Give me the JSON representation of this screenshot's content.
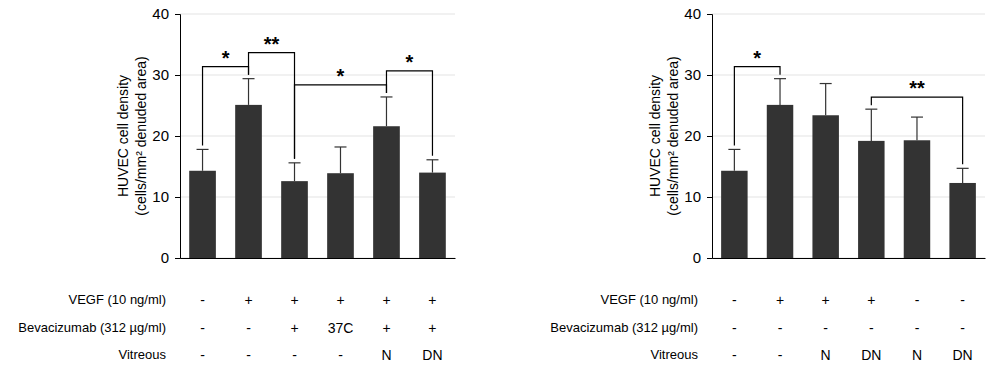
{
  "chart_data": [
    {
      "type": "bar",
      "categories": [
        null,
        null,
        null,
        null,
        null,
        null
      ],
      "values": [
        14.3,
        25.1,
        12.6,
        13.9,
        21.6,
        14.0
      ],
      "errors": [
        3.5,
        4.3,
        3.0,
        4.3,
        4.8,
        2.1
      ],
      "color": "#333333",
      "ylim": [
        0,
        40
      ],
      "yticks": [
        0,
        10,
        20,
        30,
        40
      ],
      "grid": true,
      "y_label": [
        "HUVEC cell density",
        "(cells/mm² denuded area)"
      ],
      "conditions": [
        {
          "label": "VEGF (10 ng/ml)",
          "cells": [
            "-",
            "+",
            "+",
            "+",
            "+",
            "+"
          ]
        },
        {
          "label": "Bevacizumab (312 µg/ml)",
          "cells": [
            "-",
            "-",
            "+",
            "37C",
            "+",
            "+"
          ]
        },
        {
          "label": "Vitreous",
          "cells": [
            "-",
            "-",
            "-",
            "-",
            "N",
            "DN"
          ]
        }
      ],
      "significance": [
        {
          "from": 0,
          "to": 1,
          "text": "*"
        },
        {
          "from": 1,
          "to": 2,
          "text": "**"
        },
        {
          "from": 2,
          "to": 4,
          "text": "*"
        },
        {
          "from": 4,
          "to": 5,
          "text": "*"
        }
      ]
    },
    {
      "type": "bar",
      "categories": [
        null,
        null,
        null,
        null,
        null,
        null
      ],
      "values": [
        14.3,
        25.1,
        23.4,
        19.2,
        19.3,
        12.3
      ],
      "errors": [
        3.5,
        4.3,
        5.2,
        5.2,
        3.8,
        2.4
      ],
      "color": "#333333",
      "ylim": [
        0,
        40
      ],
      "yticks": [
        0,
        10,
        20,
        30,
        40
      ],
      "grid": true,
      "y_label": [
        "HUVEC cell density",
        "(cells/mm² denuded area)"
      ],
      "conditions": [
        {
          "label": "VEGF (10 ng/ml)",
          "cells": [
            "-",
            "+",
            "+",
            "+",
            "-",
            "-"
          ]
        },
        {
          "label": "Bevacizumab (312 µg/ml)",
          "cells": [
            "-",
            "-",
            "-",
            "-",
            "-",
            "-"
          ]
        },
        {
          "label": "Vitreous",
          "cells": [
            "-",
            "-",
            "N",
            "DN",
            "N",
            "DN"
          ]
        }
      ],
      "significance": [
        {
          "from": 0,
          "to": 1,
          "text": "*"
        },
        {
          "from": 3,
          "to": 5,
          "text": "**"
        }
      ]
    }
  ]
}
